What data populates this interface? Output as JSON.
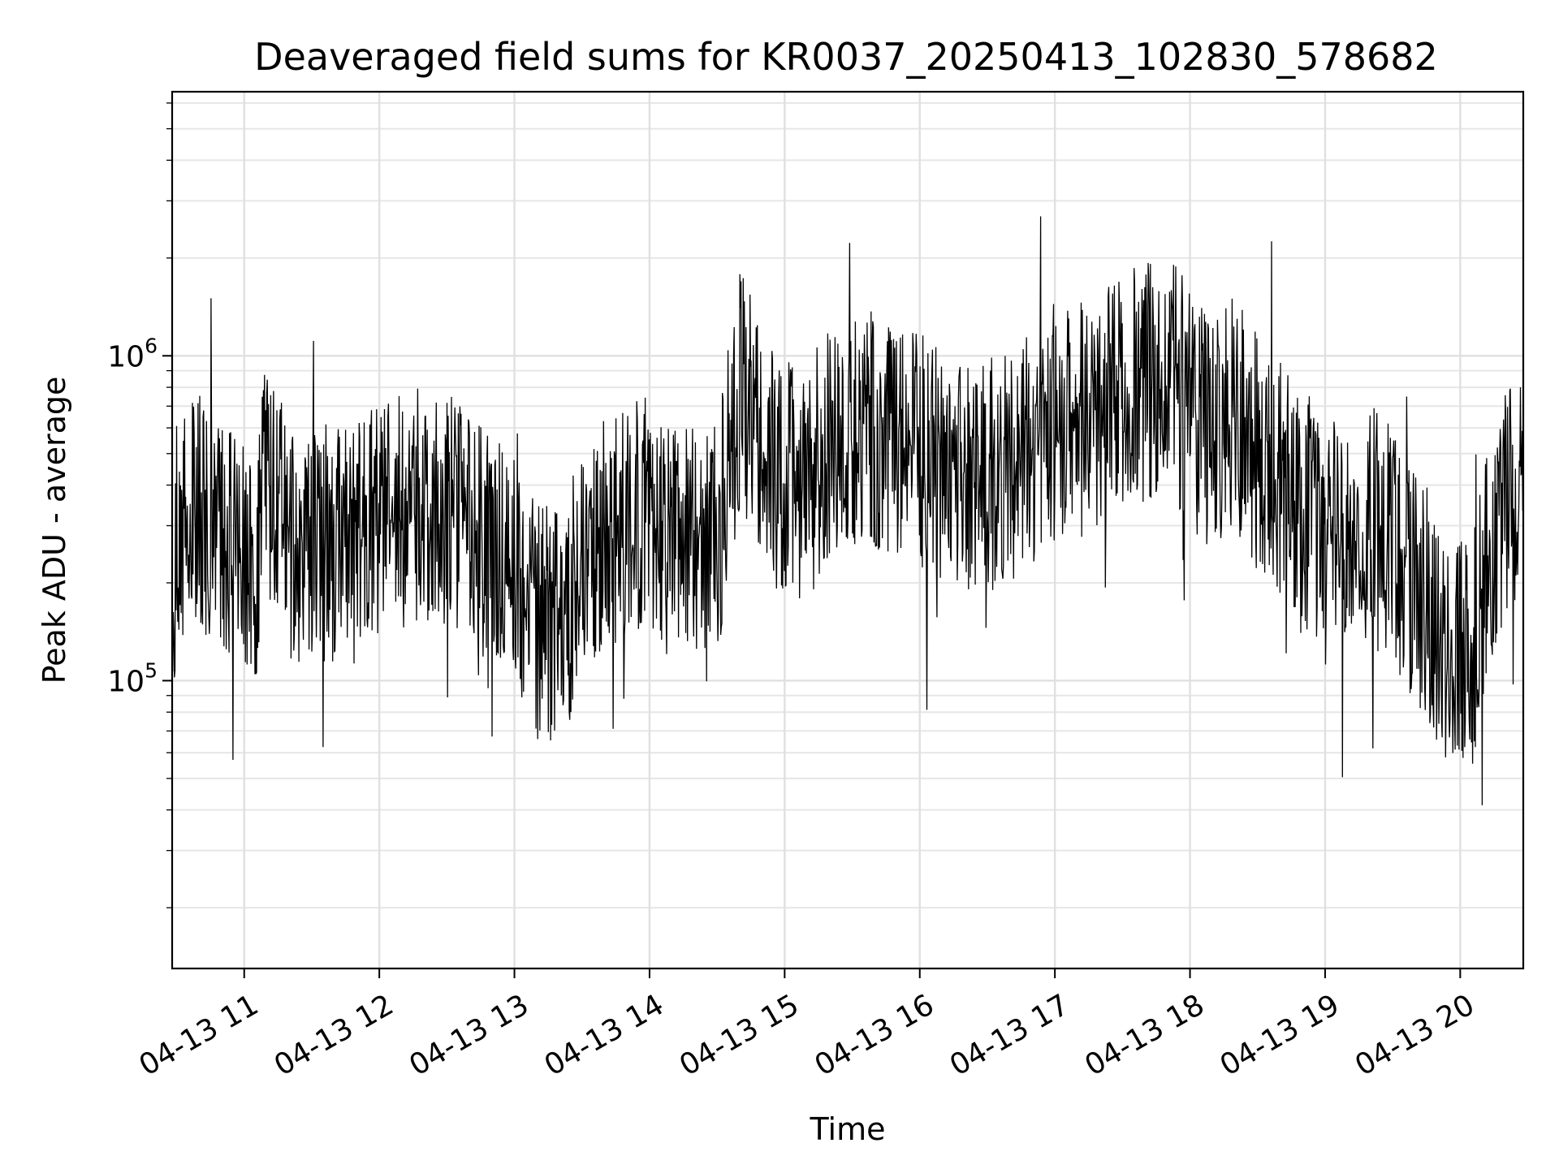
{
  "chart_data": {
    "type": "line",
    "title": "Deaveraged field sums for KR0037_20250413_102830_578682",
    "xlabel": "Time",
    "ylabel": "Peak ADU - average",
    "yscale": "log",
    "ylim": [
      13000,
      6500000
    ],
    "xlim": [
      "04-13 10:28",
      "04-13 20:28"
    ],
    "grid": true,
    "line_color": "#000000",
    "x_ticks": [
      "04-13 11",
      "04-13 12",
      "04-13 13",
      "04-13 14",
      "04-13 15",
      "04-13 16",
      "04-13 17",
      "04-13 18",
      "04-13 19",
      "04-13 20"
    ],
    "y_ticks": [
      {
        "base": "10",
        "exponent": "5",
        "value": 100000
      },
      {
        "base": "10",
        "exponent": "6",
        "value": 1000000
      }
    ],
    "series": [
      {
        "points": [
          [
            "04-13 10:28",
            200000
          ],
          [
            "04-13 10:35",
            350000
          ],
          [
            "04-13 10:45",
            300000
          ],
          [
            "04-13 10:55",
            250000
          ],
          [
            "04-13 11:05",
            200000
          ],
          [
            "04-13 11:10",
            450000
          ],
          [
            "04-13 11:20",
            250000
          ],
          [
            "04-13 11:30",
            260000
          ],
          [
            "04-13 11:45",
            270000
          ],
          [
            "04-13 12:00",
            300000
          ],
          [
            "04-13 12:15",
            350000
          ],
          [
            "04-13 12:30",
            330000
          ],
          [
            "04-13 12:45",
            280000
          ],
          [
            "04-13 13:00",
            200000
          ],
          [
            "04-13 13:10",
            150000
          ],
          [
            "04-13 13:20",
            150000
          ],
          [
            "04-13 13:35",
            250000
          ],
          [
            "04-13 13:50",
            320000
          ],
          [
            "04-13 14:00",
            300000
          ],
          [
            "04-13 14:15",
            280000
          ],
          [
            "04-13 14:30",
            260000
          ],
          [
            "04-13 14:40",
            800000
          ],
          [
            "04-13 14:55",
            450000
          ],
          [
            "04-13 15:10",
            400000
          ],
          [
            "04-13 15:20",
            550000
          ],
          [
            "04-13 15:35",
            600000
          ],
          [
            "04-13 15:50",
            550000
          ],
          [
            "04-13 16:05",
            500000
          ],
          [
            "04-13 16:20",
            400000
          ],
          [
            "04-13 16:35",
            450000
          ],
          [
            "04-13 16:50",
            500000
          ],
          [
            "04-13 17:05",
            600000
          ],
          [
            "04-13 17:20",
            700000
          ],
          [
            "04-13 17:35",
            800000
          ],
          [
            "04-13 17:50",
            900000
          ],
          [
            "04-13 18:05",
            600000
          ],
          [
            "04-13 18:20",
            650000
          ],
          [
            "04-13 18:35",
            450000
          ],
          [
            "04-13 18:50",
            350000
          ],
          [
            "04-13 19:00",
            250000
          ],
          [
            "04-13 19:10",
            300000
          ],
          [
            "04-13 19:25",
            300000
          ],
          [
            "04-13 19:40",
            200000
          ],
          [
            "04-13 19:55",
            130000
          ],
          [
            "04-13 20:05",
            120000
          ],
          [
            "04-13 20:15",
            300000
          ],
          [
            "04-13 20:28",
            400000
          ]
        ]
      }
    ]
  }
}
